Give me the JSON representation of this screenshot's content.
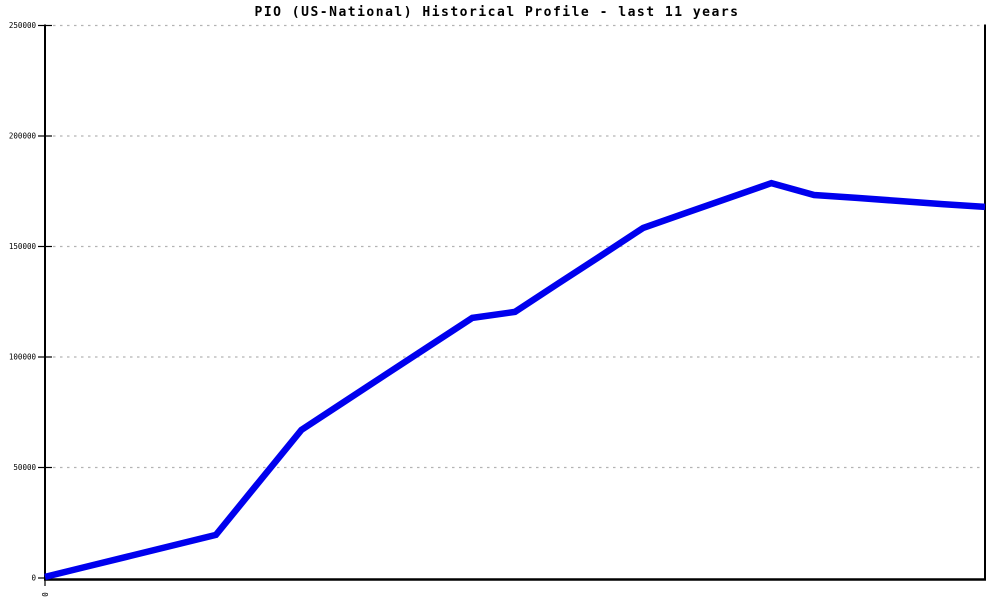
{
  "chart_data": {
    "type": "line",
    "title": "PIO (US-National) Historical Profile - last 11 years",
    "x_axis": {
      "num_points": 23,
      "span_label": "last 11 years",
      "visible_tick_labels": [
        "0"
      ]
    },
    "y_axis": {
      "min": 0,
      "max": 250000,
      "ticks": [
        0,
        50000,
        100000,
        150000,
        200000,
        250000
      ]
    },
    "series": [
      {
        "color": "#0000ee",
        "values": [
          500,
          5250,
          10000,
          14750,
          19500,
          43250,
          67000,
          79700,
          92400,
          105000,
          117700,
          120400,
          133100,
          145700,
          158400,
          165200,
          171900,
          178700,
          173300,
          172000,
          170600,
          169200,
          167900
        ]
      }
    ],
    "grid": {
      "horizontal_dashed": true,
      "color": "#b3b3b3"
    },
    "axis_color": "#000000",
    "background": "#ffffff",
    "legend_position": "none"
  }
}
